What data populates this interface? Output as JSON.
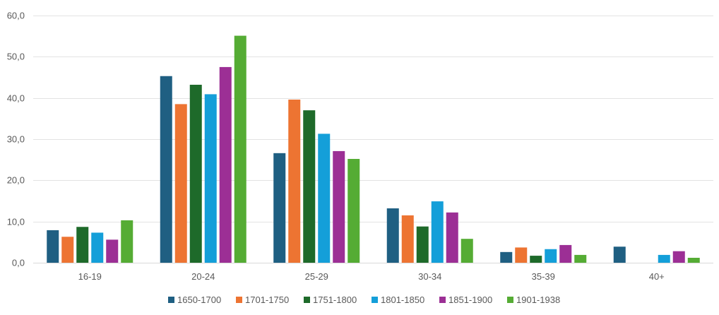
{
  "chart_data": {
    "type": "bar",
    "title": "",
    "xlabel": "",
    "ylabel": "",
    "categories": [
      "16-19",
      "20-24",
      "25-29",
      "30-34",
      "35-39",
      "40+"
    ],
    "yticks": [
      "0,0",
      "10,0",
      "20,0",
      "30,0",
      "40,0",
      "50,0",
      "60,0"
    ],
    "ylim": [
      0,
      60
    ],
    "grid": true,
    "legend_position": "bottom",
    "series": [
      {
        "name": "1650-1700",
        "color": "#1f5f82",
        "values": [
          7.9,
          45.3,
          26.6,
          13.2,
          2.6,
          3.9
        ]
      },
      {
        "name": "1701-1750",
        "color": "#ed7432",
        "values": [
          6.3,
          38.5,
          39.6,
          11.5,
          3.7,
          0.0
        ]
      },
      {
        "name": "1751-1800",
        "color": "#1e6a2a",
        "values": [
          8.7,
          43.2,
          37.0,
          8.8,
          1.7,
          0.0
        ]
      },
      {
        "name": "1801-1850",
        "color": "#149fd9",
        "values": [
          7.3,
          40.9,
          31.3,
          14.9,
          3.3,
          1.9
        ]
      },
      {
        "name": "1851-1900",
        "color": "#9c2f95",
        "values": [
          5.6,
          47.5,
          27.1,
          12.2,
          4.3,
          2.8
        ]
      },
      {
        "name": "1901-1938",
        "color": "#55ac34",
        "values": [
          10.3,
          55.1,
          25.2,
          5.8,
          1.9,
          1.2
        ]
      }
    ]
  }
}
